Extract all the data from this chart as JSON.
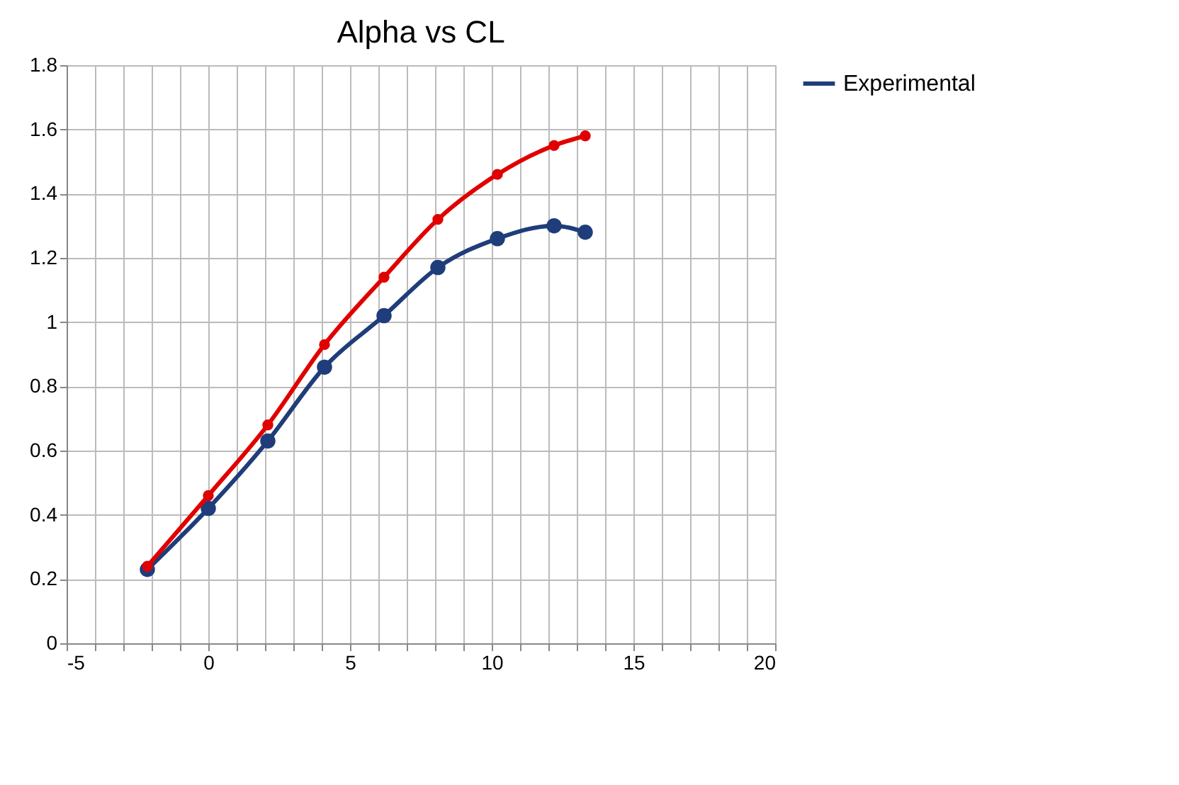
{
  "chart_data": {
    "type": "line",
    "title": "Alpha vs CL",
    "series": [
      {
        "name": "Experimental",
        "color": "#1f3d7a",
        "x": [
          -2.15,
          0,
          2.1,
          4.1,
          6.2,
          8.1,
          10.2,
          12.2,
          13.3
        ],
        "values": [
          0.23,
          0.42,
          0.63,
          0.86,
          1.02,
          1.17,
          1.26,
          1.3,
          1.28
        ]
      },
      {
        "color": "#e00000",
        "x": [
          -2.15,
          0,
          2.1,
          4.1,
          6.2,
          8.1,
          10.2,
          12.2,
          13.3
        ],
        "values": [
          0.24,
          0.46,
          0.68,
          0.93,
          1.14,
          1.32,
          1.46,
          1.55,
          1.58
        ]
      }
    ],
    "xlim": [
      -5,
      20
    ],
    "xticks": [
      -5,
      {
        "value": -4,
        "label": null
      },
      {
        "value": -3,
        "label": null
      },
      {
        "value": -2,
        "label": null
      },
      {
        "value": -1,
        "label": null
      },
      0,
      {
        "value": 1,
        "label": null
      },
      {
        "value": 2,
        "label": null
      },
      {
        "value": 3,
        "label": null
      },
      {
        "value": 4,
        "label": null
      },
      5,
      {
        "value": 6,
        "label": null
      },
      {
        "value": 7,
        "label": null
      },
      {
        "value": 8,
        "label": null
      },
      {
        "value": 9,
        "label": null
      },
      10,
      {
        "value": 11,
        "label": null
      },
      {
        "value": 12,
        "label": null
      },
      {
        "value": 13,
        "label": null
      },
      {
        "value": 14,
        "label": null
      },
      15,
      {
        "value": 16,
        "label": null
      },
      {
        "value": 17,
        "label": null
      },
      {
        "value": 18,
        "label": null
      },
      {
        "value": 19,
        "label": null
      },
      20
    ],
    "ylim": [
      0,
      1.8
    ],
    "yticks": [
      0,
      0.2,
      0.4,
      0.6,
      0.8,
      1,
      1.2,
      1.4,
      1.6,
      1.8
    ],
    "grid": true,
    "legend": "right",
    "marker": "circle",
    "line_style": "solid"
  }
}
